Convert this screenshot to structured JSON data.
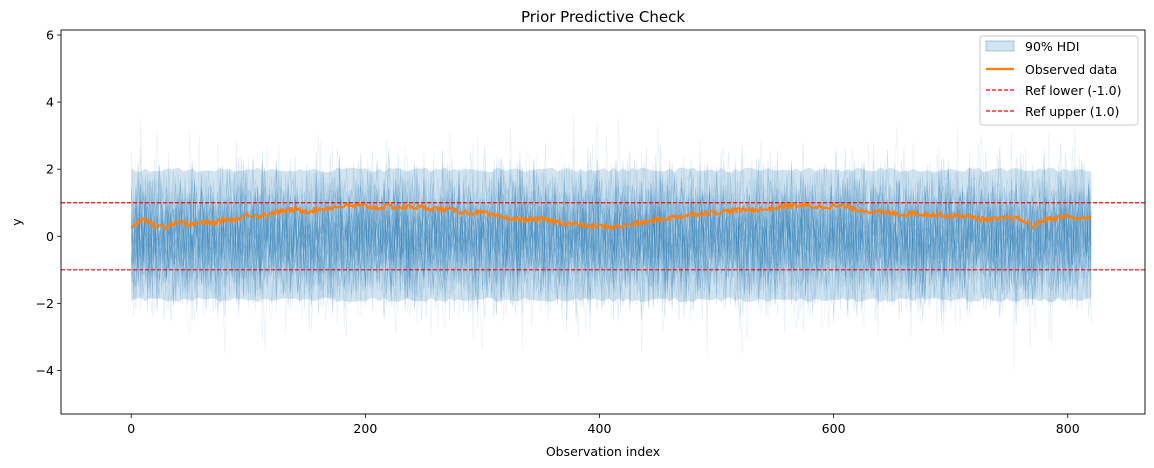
{
  "chart_data": {
    "type": "line",
    "title": "Prior Predictive Check",
    "xlabel": "Observation index",
    "ylabel": "y",
    "xlim": [
      -60,
      866
    ],
    "ylim": [
      -5.3,
      6.15
    ],
    "x_ticks": [
      0,
      200,
      400,
      600,
      800
    ],
    "y_ticks": [
      -4,
      -2,
      0,
      2,
      4,
      6
    ],
    "x_tick_labels": [
      "0",
      "200",
      "400",
      "600",
      "800"
    ],
    "y_tick_labels": [
      "−4",
      "−2",
      "0",
      "2",
      "4",
      "6"
    ],
    "n_observations": 821,
    "grid": false,
    "legend_position": "top-right",
    "hdi": {
      "name": "90% HDI",
      "color": "#1f77b4",
      "x": [
        0,
        821
      ],
      "lower": [
        -1.9,
        -1.9
      ],
      "upper": [
        1.98,
        1.98
      ]
    },
    "prior_draws_range": [
      -4.6,
      5.4
    ],
    "series": [
      {
        "name": "Observed data",
        "color": "#ff7f0e",
        "x": [
          0,
          10,
          20,
          30,
          40,
          50,
          60,
          70,
          80,
          90,
          100,
          110,
          120,
          130,
          140,
          150,
          160,
          170,
          180,
          190,
          200,
          210,
          220,
          230,
          240,
          250,
          260,
          270,
          280,
          290,
          300,
          310,
          320,
          330,
          340,
          350,
          360,
          370,
          380,
          390,
          400,
          410,
          420,
          430,
          440,
          450,
          460,
          470,
          480,
          490,
          500,
          510,
          520,
          530,
          540,
          550,
          560,
          570,
          580,
          590,
          600,
          610,
          620,
          630,
          640,
          650,
          660,
          670,
          680,
          690,
          700,
          710,
          720,
          730,
          740,
          750,
          760,
          770,
          780,
          790,
          800,
          810,
          820
        ],
        "y": [
          0.25,
          0.55,
          0.3,
          0.3,
          0.45,
          0.35,
          0.4,
          0.4,
          0.5,
          0.5,
          0.65,
          0.6,
          0.7,
          0.75,
          0.8,
          0.75,
          0.8,
          0.85,
          0.9,
          0.9,
          0.9,
          0.85,
          0.9,
          0.85,
          0.88,
          0.85,
          0.82,
          0.8,
          0.75,
          0.7,
          0.7,
          0.6,
          0.55,
          0.5,
          0.5,
          0.5,
          0.45,
          0.4,
          0.35,
          0.3,
          0.3,
          0.28,
          0.3,
          0.38,
          0.42,
          0.5,
          0.55,
          0.6,
          0.65,
          0.7,
          0.72,
          0.75,
          0.78,
          0.8,
          0.8,
          0.85,
          0.9,
          0.92,
          0.9,
          0.88,
          0.9,
          0.88,
          0.8,
          0.75,
          0.7,
          0.7,
          0.65,
          0.7,
          0.65,
          0.65,
          0.6,
          0.62,
          0.55,
          0.5,
          0.5,
          0.55,
          0.5,
          0.3,
          0.5,
          0.55,
          0.6,
          0.5,
          0.6
        ]
      },
      {
        "name": "Ref lower (-1.0)",
        "color": "#ff0000",
        "style": "dashed",
        "value": -1.0
      },
      {
        "name": "Ref upper (1.0)",
        "color": "#ff0000",
        "style": "dashed",
        "value": 1.0
      }
    ]
  }
}
